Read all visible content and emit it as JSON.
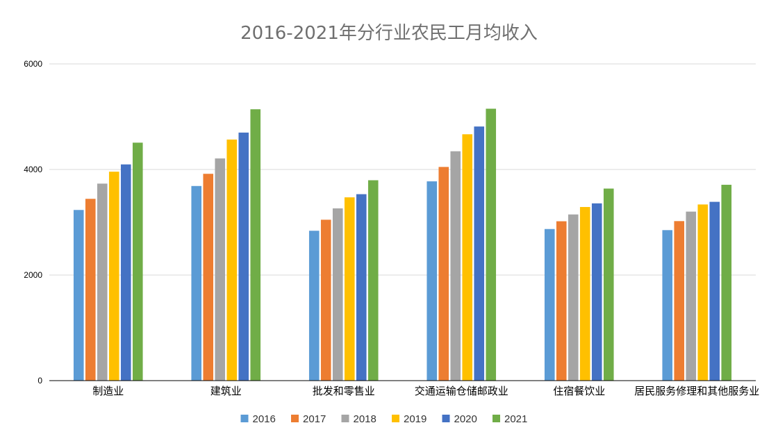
{
  "chart_data": {
    "type": "bar",
    "title": "2016-2021年分行业农民工月均收入",
    "xlabel": "",
    "ylabel": "",
    "ylim": [
      0,
      6000
    ],
    "yticks": [
      0,
      2000,
      4000,
      6000
    ],
    "grid": true,
    "legend_position": "bottom",
    "categories": [
      "制造业",
      "建筑业",
      "批发和零售业",
      "交通运输仓储邮政业",
      "住宿餐饮业",
      "居民服务修理和其他服务业"
    ],
    "series": [
      {
        "name": "2016",
        "color": "#5b9bd5",
        "values": [
          3233,
          3687,
          2839,
          3775,
          2872,
          2851
        ]
      },
      {
        "name": "2017",
        "color": "#ed7d31",
        "values": [
          3444,
          3918,
          3048,
          4048,
          3019,
          3022
        ]
      },
      {
        "name": "2018",
        "color": "#a5a5a5",
        "values": [
          3732,
          4209,
          3263,
          4345,
          3148,
          3202
        ]
      },
      {
        "name": "2019",
        "color": "#ffc000",
        "values": [
          3958,
          4567,
          3472,
          4667,
          3289,
          3337
        ]
      },
      {
        "name": "2020",
        "color": "#4472c4",
        "values": [
          4096,
          4699,
          3532,
          4814,
          3358,
          3387
        ]
      },
      {
        "name": "2021",
        "color": "#70ad47",
        "values": [
          4508,
          5141,
          3796,
          5151,
          3638,
          3710
        ]
      }
    ]
  }
}
